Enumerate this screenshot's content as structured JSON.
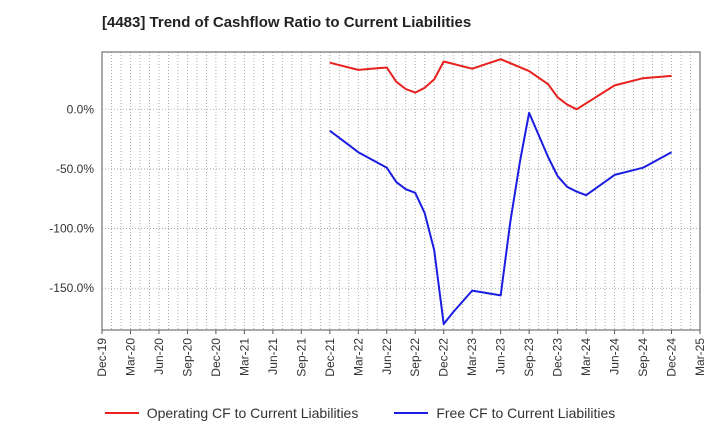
{
  "chart_data": {
    "type": "line",
    "title": "[4483]  Trend of Cashflow Ratio to Current Liabilities",
    "xlabel": "",
    "ylabel": "",
    "x_ticks": [
      "Dec-19",
      "Mar-20",
      "Jun-20",
      "Sep-20",
      "Dec-20",
      "Mar-21",
      "Jun-21",
      "Sep-21",
      "Dec-21",
      "Mar-22",
      "Jun-22",
      "Sep-22",
      "Dec-22",
      "Mar-23",
      "Jun-23",
      "Sep-23",
      "Dec-23",
      "Mar-24",
      "Jun-24",
      "Sep-24",
      "Dec-24",
      "Mar-25"
    ],
    "y_ticks": [
      "0.0%",
      "-50.0%",
      "-100.0%",
      "-150.0%"
    ],
    "y_tick_values": [
      0,
      -50,
      -100,
      -150
    ],
    "ylim": [
      -185,
      48
    ],
    "grid": true,
    "legend_position": "bottom",
    "series": [
      {
        "name": "Operating CF to Current Liabilities",
        "color": "#e8201e",
        "points": [
          [
            "Dec-21",
            39
          ],
          [
            "Mar-22",
            33
          ],
          [
            "Jun-22",
            35
          ],
          [
            "Jul-22",
            23
          ],
          [
            "Aug-22",
            17
          ],
          [
            "Sep-22",
            14
          ],
          [
            "Oct-22",
            18
          ],
          [
            "Nov-22",
            25
          ],
          [
            "Dec-22",
            40
          ],
          [
            "Mar-23",
            34
          ],
          [
            "Jun-23",
            42
          ],
          [
            "Sep-23",
            32
          ],
          [
            "Nov-23",
            21
          ],
          [
            "Dec-23",
            10
          ],
          [
            "Jan-24",
            4
          ],
          [
            "Feb-24",
            0
          ],
          [
            "Jun-24",
            20
          ],
          [
            "Sep-24",
            26
          ],
          [
            "Dec-24",
            28
          ]
        ]
      },
      {
        "name": "Free CF to Current Liabilities",
        "color": "#1b1ee0",
        "points": [
          [
            "Dec-21",
            -18
          ],
          [
            "Mar-22",
            -36
          ],
          [
            "Jun-22",
            -49
          ],
          [
            "Jul-22",
            -61
          ],
          [
            "Aug-22",
            -67
          ],
          [
            "Sep-22",
            -70
          ],
          [
            "Oct-22",
            -87
          ],
          [
            "Nov-22",
            -118
          ],
          [
            "Dec-22",
            -180
          ],
          [
            "Jan-23",
            -170
          ],
          [
            "Mar-23",
            -152
          ],
          [
            "Jun-23",
            -156
          ],
          [
            "Jul-23",
            -95
          ],
          [
            "Aug-23",
            -45
          ],
          [
            "Sep-23",
            -3
          ],
          [
            "Nov-23",
            -40
          ],
          [
            "Dec-23",
            -56
          ],
          [
            "Jan-24",
            -65
          ],
          [
            "Feb-24",
            -69
          ],
          [
            "Mar-24",
            -72
          ],
          [
            "Jun-24",
            -55
          ],
          [
            "Sep-24",
            -49
          ],
          [
            "Dec-24",
            -36
          ]
        ]
      }
    ]
  }
}
